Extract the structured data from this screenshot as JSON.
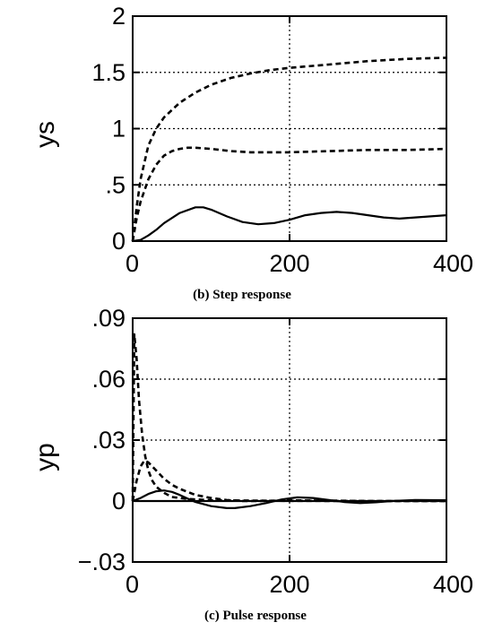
{
  "chart_data": [
    {
      "type": "line",
      "caption": "(b) Step response",
      "ylabel": "ys",
      "xlabel": "",
      "xlim": [
        0,
        400
      ],
      "ylim": [
        0,
        2
      ],
      "x_ticks": [
        {
          "value": 0,
          "label": "0"
        },
        {
          "value": 200,
          "label": "200"
        },
        {
          "value": 400,
          "label": "400"
        }
      ],
      "y_ticks": [
        {
          "value": 0,
          "label": "0"
        },
        {
          "value": 0.5,
          "label": ".5"
        },
        {
          "value": 1,
          "label": "1"
        },
        {
          "value": 1.5,
          "label": "1.5"
        },
        {
          "value": 2,
          "label": "2"
        }
      ],
      "grid": {
        "y": [
          0.5,
          1,
          1.5
        ],
        "x": [
          200
        ]
      },
      "series": [
        {
          "style": "dashed",
          "x": [
            0,
            5,
            10,
            20,
            30,
            40,
            60,
            80,
            100,
            125,
            150,
            175,
            200,
            250,
            300,
            350,
            400
          ],
          "y": [
            0,
            0.3,
            0.55,
            0.85,
            1.0,
            1.1,
            1.23,
            1.32,
            1.39,
            1.45,
            1.49,
            1.52,
            1.54,
            1.57,
            1.6,
            1.62,
            1.63
          ]
        },
        {
          "style": "dashed",
          "x": [
            0,
            5,
            10,
            20,
            30,
            40,
            50,
            60,
            70,
            80,
            100,
            125,
            150,
            200,
            250,
            300,
            350,
            400
          ],
          "y": [
            0,
            0.2,
            0.35,
            0.55,
            0.68,
            0.76,
            0.8,
            0.82,
            0.83,
            0.83,
            0.82,
            0.8,
            0.79,
            0.79,
            0.8,
            0.81,
            0.81,
            0.82
          ]
        },
        {
          "style": "solid",
          "x": [
            0,
            10,
            20,
            30,
            40,
            60,
            80,
            90,
            100,
            120,
            140,
            160,
            180,
            200,
            220,
            240,
            260,
            280,
            300,
            320,
            340,
            360,
            380,
            400
          ],
          "y": [
            0,
            0.01,
            0.05,
            0.1,
            0.16,
            0.25,
            0.3,
            0.3,
            0.28,
            0.22,
            0.17,
            0.15,
            0.16,
            0.19,
            0.23,
            0.25,
            0.26,
            0.25,
            0.23,
            0.21,
            0.2,
            0.21,
            0.22,
            0.23
          ]
        }
      ]
    },
    {
      "type": "line",
      "caption": "(c) Pulse response",
      "ylabel": "yp",
      "xlabel": "",
      "xlim": [
        0,
        400
      ],
      "ylim": [
        -0.03,
        0.09
      ],
      "x_ticks": [
        {
          "value": 0,
          "label": "0"
        },
        {
          "value": 200,
          "label": "200"
        },
        {
          "value": 400,
          "label": "400"
        }
      ],
      "y_ticks": [
        {
          "value": -0.03,
          "label": "−.03"
        },
        {
          "value": 0,
          "label": "0"
        },
        {
          "value": 0.03,
          "label": ".03"
        },
        {
          "value": 0.06,
          "label": ".06"
        },
        {
          "value": 0.09,
          "label": ".09"
        }
      ],
      "grid": {
        "y": [
          0.03,
          0.06
        ],
        "x": [
          200
        ]
      },
      "series": [
        {
          "style": "dashed",
          "x": [
            0,
            2,
            5,
            8,
            12,
            16,
            20,
            25,
            30,
            40,
            50,
            70,
            100,
            150,
            200,
            300,
            400
          ],
          "y": [
            0,
            0.082,
            0.07,
            0.05,
            0.033,
            0.022,
            0.015,
            0.01,
            0.007,
            0.004,
            0.002,
            0.001,
            0.0004,
            0.0002,
            0.0001,
            0,
            0
          ]
        },
        {
          "style": "dashed",
          "x": [
            0,
            5,
            10,
            15,
            20,
            30,
            40,
            50,
            60,
            80,
            100,
            120,
            140,
            160,
            200,
            250,
            300,
            400
          ],
          "y": [
            0,
            0.01,
            0.017,
            0.02,
            0.019,
            0.015,
            0.011,
            0.008,
            0.006,
            0.003,
            0.0015,
            0.0005,
            0,
            0,
            0.0003,
            0.0002,
            0,
            0
          ]
        },
        {
          "style": "solid",
          "x": [
            0,
            10,
            20,
            30,
            40,
            50,
            60,
            70,
            80,
            100,
            120,
            130,
            150,
            170,
            190,
            210,
            230,
            250,
            270,
            290,
            310,
            330,
            360,
            400
          ],
          "y": [
            0,
            0.0015,
            0.0035,
            0.0048,
            0.0052,
            0.0045,
            0.003,
            0.0012,
            -0.0005,
            -0.0025,
            -0.0035,
            -0.0035,
            -0.0025,
            -0.001,
            0.0008,
            0.0018,
            0.0015,
            0.0005,
            -0.0005,
            -0.001,
            -0.0006,
            0,
            0.0005,
            0.0004
          ]
        },
        {
          "style": "solid",
          "x": [
            0,
            400
          ],
          "y": [
            0,
            0
          ]
        }
      ]
    }
  ]
}
